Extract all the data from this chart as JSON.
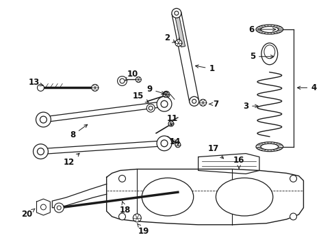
{
  "background_color": "#ffffff",
  "fig_width": 4.89,
  "fig_height": 3.6,
  "dpi": 100,
  "line_color": "#1a1a1a",
  "label_fontsize": 8.5
}
